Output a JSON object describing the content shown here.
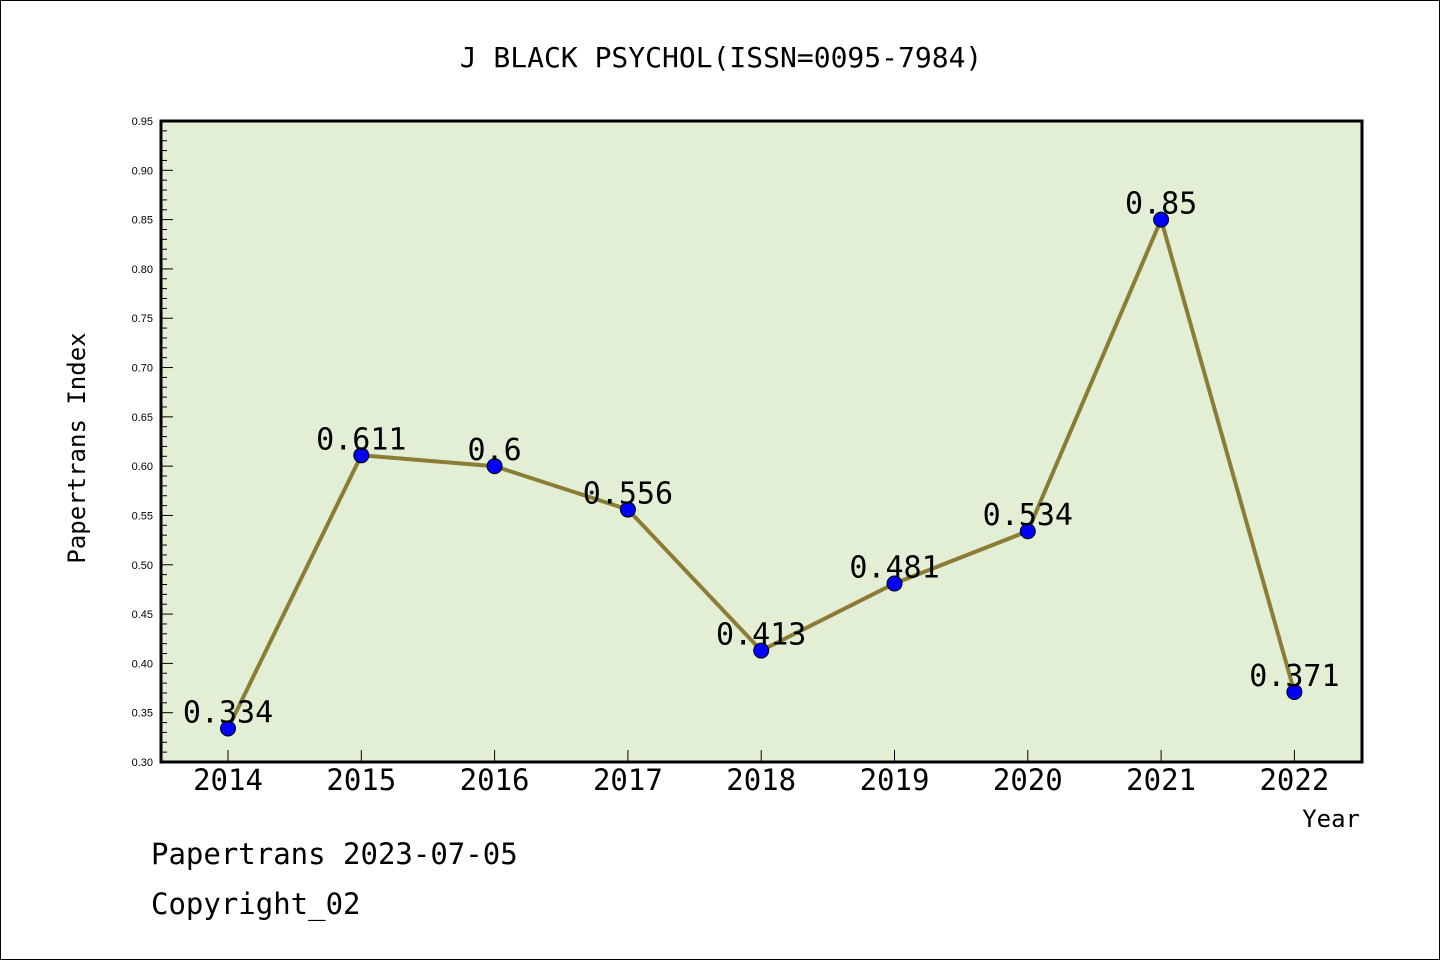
{
  "chart_data": {
    "type": "line",
    "title": "J BLACK PSYCHOL(ISSN=0095-7984)",
    "xlabel": "Year",
    "ylabel": "Papertrans Index",
    "categories": [
      "2014",
      "2015",
      "2016",
      "2017",
      "2018",
      "2019",
      "2020",
      "2021",
      "2022"
    ],
    "series": [
      {
        "values": [
          0.334,
          0.611,
          0.6,
          0.556,
          0.413,
          0.481,
          0.534,
          0.85,
          0.371
        ],
        "labels": [
          "0.334",
          "0.611",
          "0.6",
          "0.556",
          "0.413",
          "0.481",
          "0.534",
          "0.85",
          "0.371"
        ]
      }
    ],
    "ylim": [
      0.3,
      0.95
    ],
    "yticks": [
      "0.30",
      "0.35",
      "0.40",
      "0.45",
      "0.50",
      "0.55",
      "0.60",
      "0.65",
      "0.70",
      "0.75",
      "0.80",
      "0.85",
      "0.90",
      "0.95"
    ],
    "grid": false,
    "colors": {
      "plot_background": "#e2efd4",
      "line": "#8b7d36",
      "marker": "#0000ff"
    }
  },
  "footer": {
    "date_line": "Papertrans 2023-07-05",
    "copyright_line": "Copyright_02"
  }
}
